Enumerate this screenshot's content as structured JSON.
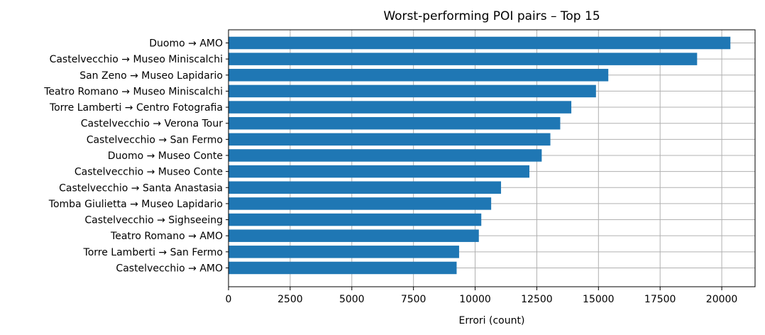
{
  "chart_data": {
    "type": "bar",
    "orientation": "horizontal",
    "title": "Worst-performing POI pairs – Top 15",
    "xlabel": "Errori (count)",
    "ylabel": "",
    "xlim": [
      0,
      21350
    ],
    "xticks": [
      0,
      2500,
      5000,
      7500,
      10000,
      12500,
      15000,
      17500,
      20000
    ],
    "xtick_labels": [
      "0",
      "2500",
      "5000",
      "7500",
      "10000",
      "12500",
      "15000",
      "17500",
      "20000"
    ],
    "grid": true,
    "bar_color": "#1f77b4",
    "categories": [
      "Duomo → AMO",
      "Castelvecchio → Museo Miniscalchi",
      "San Zeno → Museo Lapidario",
      "Teatro Romano → Museo Miniscalchi",
      "Torre Lamberti → Centro Fotografia",
      "Castelvecchio → Verona Tour",
      "Castelvecchio → San Fermo",
      "Duomo → Museo Conte",
      "Castelvecchio → Museo Conte",
      "Castelvecchio → Santa Anastasia",
      "Tomba Giulietta → Museo Lapidario",
      "Castelvecchio → Sighseeing",
      "Teatro Romano → AMO",
      "Torre Lamberti → San Fermo",
      "Castelvecchio → AMO"
    ],
    "values": [
      20350,
      19000,
      15400,
      14900,
      13900,
      13450,
      13050,
      12700,
      12200,
      11050,
      10650,
      10250,
      10150,
      9350,
      9250
    ]
  }
}
